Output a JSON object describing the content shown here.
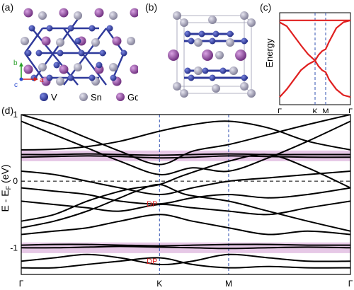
{
  "panels": {
    "a": "(a)",
    "b": "(b)",
    "c": "(c)",
    "d": "(d)"
  },
  "panel_a": {
    "axes": {
      "b": "b",
      "c": "c",
      "a": "a"
    },
    "legend": [
      {
        "symbol": "V",
        "label": "V",
        "color": "#2f3a9b"
      },
      {
        "symbol": "Sn",
        "label": "Sn",
        "color": "#9a98b0"
      },
      {
        "symbol": "Gd",
        "label": "Gd",
        "color": "#8e4a9e"
      }
    ]
  },
  "colors": {
    "vanadium": "#2f3a9b",
    "tin": "#a5a3b8",
    "gadolinium": "#8e4a9e",
    "band_c": "#e02020",
    "band_d": "#000000",
    "kpath_line": "#3050b0",
    "flat_band_highlight": "#e6c8e6",
    "dp_label": "#e02020"
  },
  "chart_data": [
    {
      "type": "line",
      "panel": "c",
      "title": "",
      "xlabel": "",
      "ylabel": "Energy",
      "x_ticks": [
        "Γ",
        "K",
        "M",
        "Γ"
      ],
      "x_tick_positions": [
        0,
        0.5,
        0.65,
        1.0
      ],
      "ylim": [
        -1.2,
        1.2
      ],
      "series": [
        {
          "x": [
            0,
            0.1,
            0.2,
            0.3,
            0.4,
            0.5,
            0.55,
            0.6,
            0.65,
            0.7,
            0.8,
            0.9,
            1.0
          ],
          "values": [
            1.0,
            1.0,
            1.0,
            1.0,
            1.0,
            1.0,
            1.0,
            1.0,
            1.0,
            1.0,
            1.0,
            1.0,
            1.0
          ]
        },
        {
          "x": [
            0,
            0.1,
            0.2,
            0.3,
            0.4,
            0.5,
            0.55,
            0.6,
            0.65,
            0.7,
            0.8,
            0.9,
            1.0
          ],
          "values": [
            0.95,
            0.85,
            0.6,
            0.35,
            0.12,
            -0.05,
            0.1,
            0.2,
            0.25,
            0.45,
            0.8,
            0.95,
            1.0
          ]
        },
        {
          "x": [
            0,
            0.1,
            0.2,
            0.3,
            0.4,
            0.5,
            0.55,
            0.6,
            0.65,
            0.7,
            0.8,
            0.9,
            1.0
          ],
          "values": [
            -1.0,
            -0.8,
            -0.55,
            -0.3,
            -0.15,
            -0.05,
            -0.2,
            -0.3,
            -0.35,
            -0.55,
            -0.8,
            -0.95,
            -1.0
          ]
        }
      ]
    },
    {
      "type": "line",
      "panel": "d",
      "title": "",
      "xlabel": "",
      "ylabel": "E - E_F (eV)",
      "ylabel_main": "E - E",
      "ylabel_sub": "F",
      "ylabel_unit": " (eV)",
      "ylim": [
        -1.4,
        1.0
      ],
      "y_ticks": [
        "1",
        "0",
        "-1"
      ],
      "y_tick_values": [
        1,
        0,
        -1
      ],
      "x_ticks": [
        "Γ",
        "K",
        "M",
        "Γ"
      ],
      "x_tick_positions": [
        0,
        0.42,
        0.63,
        1.0
      ],
      "flat_bands": [
        {
          "ymin": 0.3,
          "ymax": 0.46
        },
        {
          "ymin": -1.08,
          "ymax": -0.92
        }
      ],
      "annotations": [
        {
          "text": "DP",
          "x": 0.42,
          "y": -0.34
        },
        {
          "text": "DP",
          "x": 0.42,
          "y": -1.2
        }
      ],
      "series": [
        {
          "x": [
            0,
            0.1,
            0.2,
            0.3,
            0.42,
            0.52,
            0.63,
            0.75,
            0.87,
            1.0
          ],
          "values": [
            0.4,
            0.4,
            0.41,
            0.4,
            0.39,
            0.4,
            0.41,
            0.4,
            0.4,
            0.4
          ]
        },
        {
          "x": [
            0,
            0.1,
            0.2,
            0.3,
            0.42,
            0.52,
            0.63,
            0.75,
            0.87,
            1.0
          ],
          "values": [
            0.36,
            0.37,
            0.38,
            0.37,
            0.35,
            0.36,
            0.38,
            0.37,
            0.36,
            0.36
          ]
        },
        {
          "x": [
            0,
            0.1,
            0.2,
            0.3,
            0.42,
            0.52,
            0.63,
            0.75,
            0.87,
            1.0
          ],
          "values": [
            0.47,
            0.48,
            0.52,
            0.6,
            0.75,
            0.85,
            0.9,
            0.8,
            0.6,
            0.47
          ]
        },
        {
          "x": [
            0,
            0.1,
            0.2,
            0.3,
            0.42,
            0.52,
            0.63,
            0.75,
            0.87,
            1.0
          ],
          "values": [
            -1.0,
            -1.0,
            -0.99,
            -0.98,
            -0.99,
            -1.0,
            -1.01,
            -1.0,
            -0.99,
            -1.0
          ]
        },
        {
          "x": [
            0,
            0.1,
            0.2,
            0.3,
            0.42,
            0.52,
            0.63,
            0.75,
            0.87,
            1.0
          ],
          "values": [
            -0.96,
            -0.95,
            -0.95,
            -0.96,
            -0.97,
            -0.96,
            -0.95,
            -0.95,
            -0.96,
            -0.96
          ]
        },
        {
          "x": [
            0,
            0.1,
            0.2,
            0.3,
            0.35,
            0.42,
            0.5,
            0.63,
            0.75,
            0.87,
            1.0
          ],
          "values": [
            -0.6,
            -0.5,
            -0.3,
            -0.15,
            -0.1,
            -0.05,
            0.1,
            0.3,
            0.4,
            0.2,
            -0.1
          ]
        },
        {
          "x": [
            0,
            0.1,
            0.2,
            0.3,
            0.35,
            0.42,
            0.5,
            0.63,
            0.75,
            0.87,
            1.0
          ],
          "values": [
            -0.7,
            -0.6,
            -0.45,
            -0.25,
            -0.15,
            -0.05,
            -0.2,
            -0.3,
            -0.45,
            -0.6,
            -0.75
          ]
        },
        {
          "x": [
            0,
            0.1,
            0.2,
            0.3,
            0.42,
            0.52,
            0.63,
            0.75,
            0.87,
            1.0
          ],
          "values": [
            0.9,
            0.7,
            0.5,
            0.3,
            0.1,
            0.2,
            0.15,
            0.35,
            0.6,
            0.9
          ]
        },
        {
          "x": [
            0,
            0.1,
            0.2,
            0.3,
            0.42,
            0.52,
            0.63,
            0.75,
            0.87,
            1.0
          ],
          "values": [
            1.0,
            0.85,
            0.65,
            0.45,
            0.25,
            0.45,
            0.55,
            0.7,
            0.85,
            1.0
          ]
        },
        {
          "x": [
            0,
            0.1,
            0.2,
            0.3,
            0.42,
            0.52,
            0.63,
            0.75,
            0.87,
            1.0
          ],
          "values": [
            -0.3,
            -0.35,
            -0.4,
            -0.45,
            -0.35,
            -0.4,
            -0.45,
            -0.5,
            -0.4,
            -0.3
          ]
        },
        {
          "x": [
            0,
            0.1,
            0.2,
            0.3,
            0.42,
            0.52,
            0.63,
            0.75,
            0.87,
            1.0
          ],
          "values": [
            -0.8,
            -0.75,
            -0.7,
            -0.6,
            -0.5,
            -0.6,
            -0.7,
            -0.8,
            -0.75,
            -0.8
          ]
        },
        {
          "x": [
            0,
            0.1,
            0.2,
            0.3,
            0.42,
            0.52,
            0.63,
            0.75,
            0.87,
            1.0
          ],
          "values": [
            -1.2,
            -1.15,
            -1.1,
            -1.15,
            -1.25,
            -1.2,
            -1.1,
            -1.15,
            -1.2,
            -1.2
          ]
        },
        {
          "x": [
            0,
            0.1,
            0.2,
            0.3,
            0.42,
            0.52,
            0.63,
            0.75,
            0.87,
            1.0
          ],
          "values": [
            -1.3,
            -1.3,
            -1.25,
            -1.2,
            -1.15,
            -1.25,
            -1.3,
            -1.28,
            -1.3,
            -1.3
          ]
        },
        {
          "x": [
            0,
            0.1,
            0.2,
            0.3,
            0.42,
            0.52,
            0.63,
            0.75,
            0.87,
            1.0
          ],
          "values": [
            0.15,
            0.1,
            0.0,
            -0.1,
            -0.2,
            -0.1,
            0.0,
            0.05,
            0.1,
            0.15
          ]
        },
        {
          "x": [
            0,
            0.1,
            0.2,
            0.3,
            0.42,
            0.52,
            0.63,
            0.75,
            0.87,
            1.0
          ],
          "values": [
            -0.1,
            -0.15,
            -0.2,
            -0.3,
            -0.34,
            -0.25,
            -0.2,
            -0.25,
            -0.2,
            -0.1
          ]
        }
      ]
    }
  ]
}
